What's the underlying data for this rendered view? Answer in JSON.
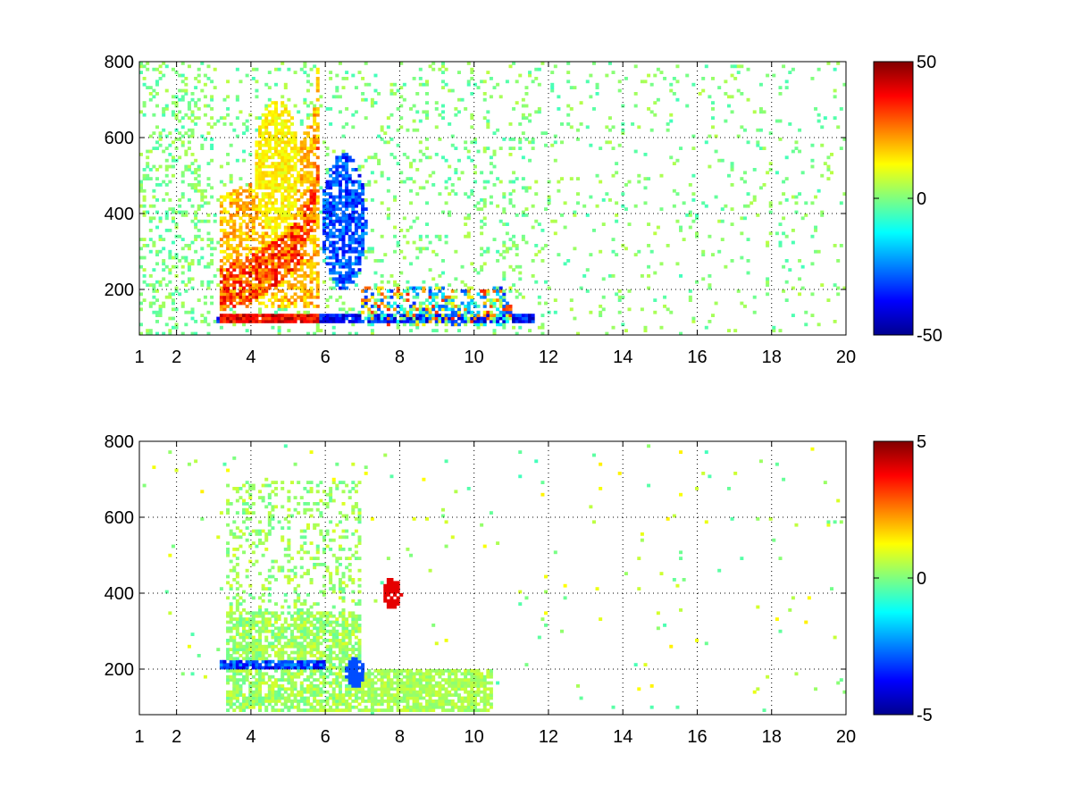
{
  "chart_data": [
    {
      "type": "heatmap",
      "title": "",
      "xlabel": "",
      "ylabel": "",
      "xlim": [
        1,
        20
      ],
      "ylim": [
        80,
        800
      ],
      "xticks": [
        "1",
        "2",
        "4",
        "6",
        "8",
        "10",
        "12",
        "14",
        "16",
        "18",
        "20"
      ],
      "yticks": [
        "200",
        "400",
        "600",
        "800"
      ],
      "grid": true,
      "colormap": "jet",
      "colorbar": {
        "range": [
          -50,
          50
        ],
        "ticks": [
          "50",
          "0",
          "-50"
        ]
      },
      "features": [
        {
          "kind": "band",
          "x_range": [
            3.1,
            11.6
          ],
          "y": 125,
          "peak_value": -45,
          "note": "strong near x 8.5-9.5"
        },
        {
          "kind": "band",
          "x_range": [
            3.2,
            5.8
          ],
          "y": 125,
          "peak_value": 48
        },
        {
          "kind": "ridge",
          "points": [
            [
              3.2,
              200
            ],
            [
              4.0,
              230
            ],
            [
              4.8,
              280
            ],
            [
              5.3,
              330
            ],
            [
              5.7,
              420
            ],
            [
              5.8,
              550
            ]
          ],
          "value": 42
        },
        {
          "kind": "blob",
          "x": 6.5,
          "y": 380,
          "value": -40
        },
        {
          "kind": "blob",
          "x": 4.7,
          "y": 520,
          "value": 18
        }
      ]
    },
    {
      "type": "heatmap",
      "title": "",
      "xlabel": "",
      "ylabel": "",
      "xlim": [
        1,
        20
      ],
      "ylim": [
        80,
        800
      ],
      "xticks": [
        "1",
        "2",
        "4",
        "6",
        "8",
        "10",
        "12",
        "14",
        "16",
        "18",
        "20"
      ],
      "yticks": [
        "200",
        "400",
        "600",
        "800"
      ],
      "grid": true,
      "colormap": "jet",
      "colorbar": {
        "range": [
          -5,
          5
        ],
        "ticks": [
          "5",
          "0",
          "-5"
        ]
      },
      "features": [
        {
          "kind": "band",
          "x_range": [
            3.2,
            6.0
          ],
          "y": 210,
          "peak_value": -4.2
        },
        {
          "kind": "blob",
          "x": 6.8,
          "y": 190,
          "value": -3
        },
        {
          "kind": "blob",
          "x": 7.8,
          "y": 400,
          "value": 4
        },
        {
          "kind": "area",
          "x_range": [
            3.5,
            10.5
          ],
          "y_range": [
            100,
            300
          ],
          "value": 0.5
        }
      ]
    }
  ]
}
